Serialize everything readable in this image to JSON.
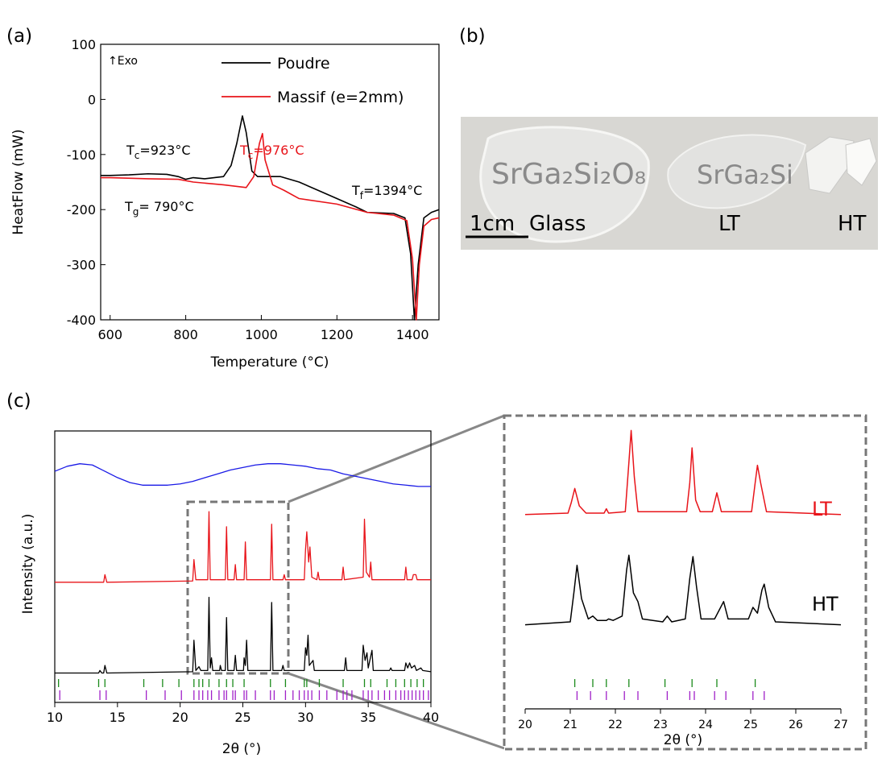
{
  "panel_labels": [
    "(a)",
    "(b)",
    "(c)"
  ],
  "chart_data": [
    {
      "type": "line",
      "xlabel": "Temperature (°C)",
      "ylabel": "HeatFlow (mW)",
      "xlim": [
        575,
        1470
      ],
      "ylim": [
        -400,
        100
      ],
      "xticks": [
        600,
        800,
        1000,
        1200,
        1400
      ],
      "yticks": [
        -400,
        -300,
        -200,
        -100,
        0,
        100
      ],
      "series": [
        {
          "name": "Poudre",
          "color": "#000000",
          "x": [
            575,
            600,
            650,
            700,
            750,
            780,
            800,
            820,
            850,
            900,
            920,
            935,
            950,
            960,
            975,
            990,
            1050,
            1100,
            1150,
            1200,
            1250,
            1280,
            1350,
            1380,
            1395,
            1405,
            1415,
            1430,
            1450,
            1470
          ],
          "values": [
            -138,
            -138,
            -137,
            -135,
            -136,
            -140,
            -145,
            -142,
            -144,
            -140,
            -120,
            -80,
            -30,
            -60,
            -130,
            -140,
            -140,
            -150,
            -165,
            -180,
            -195,
            -205,
            -207,
            -215,
            -280,
            -400,
            -300,
            -215,
            -205,
            -200
          ]
        },
        {
          "name": "Massif (e=2mm)",
          "color": "#e8141a",
          "x": [
            575,
            600,
            700,
            780,
            820,
            900,
            960,
            980,
            995,
            1003,
            1010,
            1030,
            1060,
            1100,
            1200,
            1280,
            1350,
            1385,
            1400,
            1410,
            1418,
            1430,
            1450,
            1470
          ],
          "values": [
            -142,
            -142,
            -144,
            -145,
            -150,
            -155,
            -160,
            -140,
            -80,
            -62,
            -110,
            -155,
            -165,
            -180,
            -190,
            -205,
            -210,
            -220,
            -290,
            -400,
            -300,
            -230,
            -218,
            -215
          ]
        }
      ],
      "annotations": [
        {
          "text": "↑Exo",
          "color": "#000000"
        },
        {
          "text": "T",
          "sub": "c",
          "rest": "=923°C",
          "color": "#000000"
        },
        {
          "text": "T",
          "sub": "c",
          "rest": "=976°C",
          "color": "#e8141a"
        },
        {
          "text": "T",
          "sub": "g",
          "rest": "= 790°C",
          "color": "#000000"
        },
        {
          "text": "T",
          "sub": "f",
          "rest": "=1394°C",
          "color": "#000000"
        }
      ]
    },
    {
      "type": "line",
      "xlabel": "2θ (°)",
      "ylabel": "Intensity (a.u.)",
      "xlim": [
        10,
        40
      ],
      "ylim": [
        0,
        100
      ],
      "xticks": [
        10,
        15,
        20,
        25,
        30,
        35,
        40
      ],
      "series": [
        {
          "color": "#1a1ae6",
          "x": [
            10,
            11,
            12,
            13,
            14,
            15,
            16,
            17,
            18,
            19,
            20,
            21,
            22,
            23,
            24,
            25,
            26,
            27,
            28,
            29,
            30,
            31,
            32,
            33,
            34,
            35,
            36,
            37,
            38,
            39,
            40
          ],
          "values": [
            84,
            86,
            87,
            86.5,
            84,
            81.5,
            79.5,
            78.5,
            78.5,
            78.5,
            79,
            80,
            81.5,
            83,
            84.5,
            85.5,
            86.5,
            87,
            87,
            86.5,
            86,
            85,
            84.5,
            83,
            82,
            81,
            80,
            79,
            78.5,
            78,
            78
          ]
        },
        {
          "color": "#e8141a",
          "x": [
            10,
            13.9,
            14.0,
            14.15,
            21.0,
            21.1,
            21.25,
            22.2,
            22.3,
            22.4,
            23.6,
            23.7,
            23.8,
            24.3,
            24.4,
            24.5,
            25.1,
            25.2,
            25.3,
            27.2,
            27.3,
            27.4,
            28.2,
            28.3,
            28.4,
            29.9,
            30.0,
            30.1,
            30.25,
            30.35,
            30.5,
            30.9,
            31.0,
            31.1,
            32.9,
            33.0,
            33.1,
            34.6,
            34.7,
            34.85,
            35.1,
            35.2,
            35.3,
            37.9,
            38.0,
            38.1,
            38.5,
            38.6,
            38.8,
            38.9,
            40
          ],
          "values": [
            40,
            40,
            43,
            40,
            40.5,
            49,
            41,
            41,
            68,
            41,
            41,
            62,
            41,
            41,
            47,
            41,
            41,
            56,
            41,
            41,
            63,
            41,
            41,
            43,
            41,
            41,
            53,
            60,
            48,
            54,
            42,
            41,
            44,
            41,
            41,
            46,
            41,
            42,
            65,
            44,
            42,
            48,
            41,
            41,
            46,
            41,
            41,
            43,
            43,
            41,
            41
          ]
        },
        {
          "color": "#000000",
          "x": [
            10,
            13.5,
            13.6,
            13.75,
            13.9,
            14.0,
            14.15,
            21.0,
            21.1,
            21.25,
            21.5,
            21.65,
            22.2,
            22.3,
            22.4,
            22.5,
            22.6,
            23.15,
            23.2,
            23.3,
            23.6,
            23.7,
            23.8,
            24.3,
            24.4,
            24.5,
            25.05,
            25.1,
            25.2,
            25.3,
            25.4,
            27.2,
            27.3,
            27.4,
            28.1,
            28.2,
            28.3,
            29.9,
            30.0,
            30.1,
            30.2,
            30.3,
            30.6,
            30.7,
            33.1,
            33.2,
            33.3,
            34.5,
            34.6,
            34.75,
            34.9,
            35.0,
            35.3,
            35.4,
            36.7,
            36.8,
            36.9,
            37.9,
            38.0,
            38.15,
            38.3,
            38.45,
            38.7,
            38.85,
            39.2,
            39.35,
            40
          ],
          "values": [
            4,
            4,
            5,
            4,
            4,
            7,
            4,
            4.5,
            17,
            5,
            6.5,
            5,
            5,
            34,
            6,
            10,
            5,
            5,
            7,
            5,
            5,
            26,
            5,
            5,
            11,
            5,
            5,
            10,
            7,
            17,
            5,
            5,
            32,
            5,
            5,
            7,
            5,
            5,
            14,
            11,
            19,
            7,
            9,
            5,
            5,
            10,
            5,
            5,
            15,
            9,
            12,
            6,
            13,
            5,
            5,
            6,
            5,
            5,
            8,
            6,
            8,
            6,
            7,
            5,
            6,
            5,
            4.5
          ]
        }
      ],
      "reflections": [
        {
          "color": "#1a8a1a",
          "positions": [
            10.3,
            13.5,
            14.0,
            17.1,
            18.6,
            19.9,
            21.1,
            21.5,
            21.8,
            22.3,
            23.1,
            23.7,
            24.2,
            25.1,
            27.2,
            28.4,
            29.9,
            30.1,
            31.1,
            33.0,
            34.7,
            35.2,
            36.5,
            37.2,
            37.9,
            38.4,
            38.9,
            39.4
          ]
        },
        {
          "color": "#a020c8",
          "positions": [
            10.4,
            13.6,
            14.1,
            17.3,
            18.8,
            20.1,
            21.1,
            21.5,
            21.8,
            22.2,
            22.5,
            23.1,
            23.5,
            23.7,
            24.2,
            24.4,
            25.1,
            25.3,
            26.0,
            27.2,
            27.5,
            28.4,
            29.0,
            29.5,
            29.9,
            30.2,
            30.5,
            31.1,
            31.7,
            32.5,
            33.0,
            33.3,
            33.7,
            34.6,
            35.0,
            35.3,
            35.8,
            36.3,
            36.7,
            37.2,
            37.6,
            37.9,
            38.2,
            38.5,
            38.8,
            39.1,
            39.4,
            39.8
          ]
        }
      ]
    },
    {
      "type": "line",
      "xlabel": "2θ (°)",
      "xlim": [
        20,
        27
      ],
      "ylim": [
        0,
        100
      ],
      "xticks": [
        20,
        21,
        22,
        23,
        24,
        25,
        26,
        27
      ],
      "series": [
        {
          "name": "LT",
          "color": "#e8141a",
          "x": [
            20,
            20.95,
            21.02,
            21.1,
            21.2,
            21.35,
            21.75,
            21.8,
            21.85,
            22.22,
            22.3,
            22.35,
            22.42,
            22.5,
            23.58,
            23.65,
            23.7,
            23.78,
            23.88,
            24.15,
            24.25,
            24.35,
            25.02,
            25.1,
            25.15,
            25.22,
            25.35,
            27
          ],
          "values": [
            67,
            67.5,
            71,
            76,
            70,
            67.5,
            67.5,
            69,
            67.5,
            68,
            85,
            96,
            80,
            68,
            68,
            78,
            90,
            72,
            68,
            68,
            74.5,
            68,
            68,
            78,
            84,
            78,
            68,
            67
          ]
        },
        {
          "name": "HT",
          "color": "#000000",
          "x": [
            20,
            21.0,
            21.08,
            21.15,
            21.25,
            21.4,
            21.5,
            21.6,
            21.8,
            21.85,
            21.95,
            22.15,
            22.25,
            22.3,
            22.4,
            22.5,
            22.6,
            23.05,
            23.15,
            23.25,
            23.55,
            23.65,
            23.72,
            23.8,
            23.9,
            24.2,
            24.3,
            24.4,
            24.5,
            24.95,
            25.05,
            25.15,
            25.25,
            25.3,
            25.4,
            25.55,
            27
          ],
          "values": [
            29,
            30,
            40,
            49.5,
            38,
            31,
            32,
            30.5,
            30.5,
            31,
            30.5,
            32,
            48,
            53,
            40,
            37,
            31,
            30,
            32,
            30,
            31,
            45,
            52.5,
            42,
            31,
            31,
            34,
            37,
            31,
            31,
            35,
            33,
            41,
            43,
            35,
            30,
            29
          ]
        }
      ],
      "reflections": [
        {
          "color": "#1a8a1a",
          "positions": [
            21.1,
            21.5,
            21.8,
            22.3,
            23.1,
            23.7,
            24.25,
            25.1
          ]
        },
        {
          "color": "#a020c8",
          "positions": [
            21.15,
            21.45,
            21.8,
            22.2,
            22.5,
            23.15,
            23.65,
            23.75,
            24.2,
            24.45,
            25.05,
            25.3
          ]
        }
      ]
    }
  ],
  "photo": {
    "formula": "SrGa₂Si₂O₈",
    "formula_partial": "SrGa₂Si",
    "scale_bar": "1cm",
    "labels": [
      "Glass",
      "LT",
      "HT"
    ]
  }
}
